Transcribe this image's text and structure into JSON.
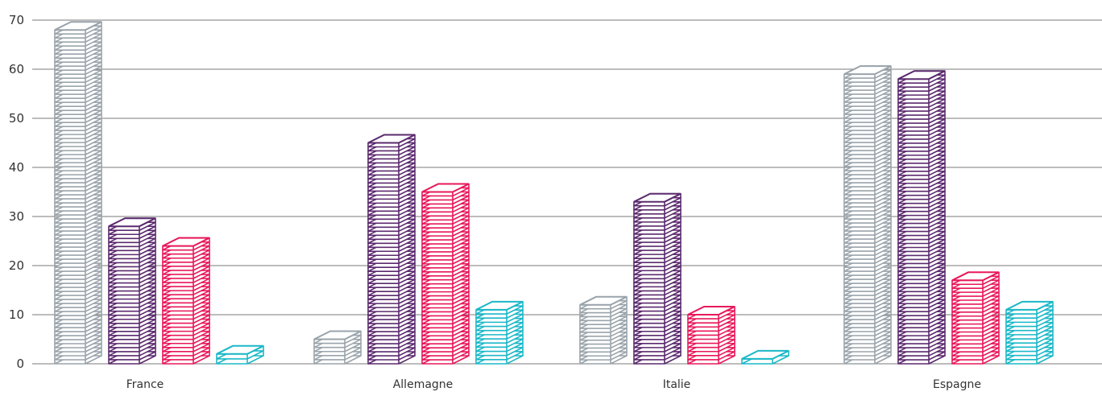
{
  "chart_data": {
    "type": "bar",
    "categories": [
      "France",
      "Allemagne",
      "Italie",
      "Espagne"
    ],
    "series": [
      {
        "color": "#9aa4ab",
        "values": [
          68,
          5,
          12,
          59
        ]
      },
      {
        "color": "#5b2a6e",
        "values": [
          28,
          45,
          33,
          58
        ]
      },
      {
        "color": "#e8185a",
        "values": [
          24,
          35,
          10,
          17
        ]
      },
      {
        "color": "#1bb8c8",
        "values": [
          2,
          11,
          1,
          11
        ]
      }
    ],
    "ylim": [
      0,
      70
    ],
    "yticks": [
      0,
      10,
      20,
      30,
      40,
      50,
      60,
      70
    ],
    "grid": true,
    "legend": "none"
  }
}
